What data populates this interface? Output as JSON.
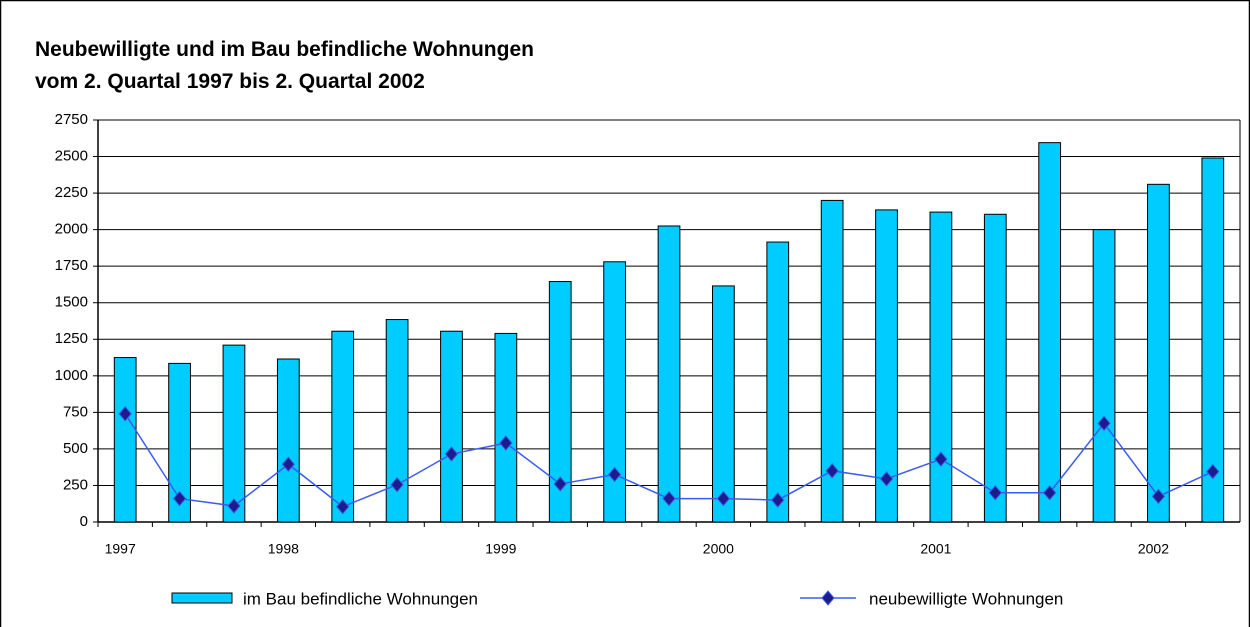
{
  "chart_data": {
    "type": "bar-line",
    "title": "Neubewilligte und im Bau befindliche Wohnungen",
    "subtitle": "vom 2. Quartal 1997 bis 2. Quartal 2002",
    "categories": [
      "1997",
      null,
      null,
      "1998",
      null,
      null,
      null,
      "1999",
      null,
      null,
      null,
      "2000",
      null,
      null,
      null,
      "2001",
      null,
      null,
      null,
      "2002",
      null
    ],
    "series": [
      {
        "name": "im Bau befindliche Wohnungen",
        "type": "bar",
        "color": "#00ccff",
        "values": [
          1125,
          1085,
          1210,
          1115,
          1305,
          1385,
          1305,
          1290,
          1645,
          1780,
          2025,
          1615,
          1915,
          2200,
          2135,
          2120,
          2105,
          2595,
          2000,
          2310,
          2490
        ]
      },
      {
        "name": "neubewilligte Wohnungen",
        "type": "line",
        "color": "#3b5bf0",
        "marker_color": "#1c1c8c",
        "values": [
          740,
          160,
          110,
          395,
          105,
          255,
          465,
          540,
          260,
          325,
          160,
          160,
          150,
          350,
          295,
          430,
          200,
          200,
          675,
          175,
          345
        ]
      }
    ],
    "ylim": [
      0,
      2750
    ],
    "yticks": [
      0,
      250,
      500,
      750,
      1000,
      1250,
      1500,
      1750,
      2000,
      2250,
      2500,
      2750
    ],
    "grid": true,
    "legend": "bottom"
  }
}
